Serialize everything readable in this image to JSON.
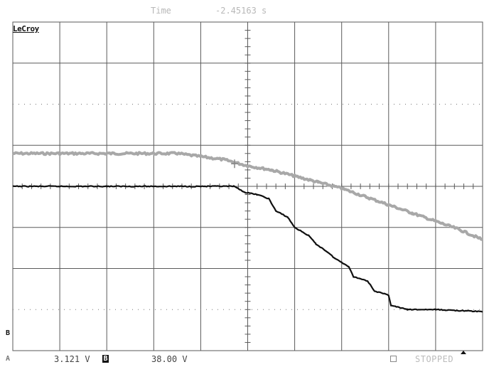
{
  "header": {
    "time_label": "Time",
    "time_value": "-2.45163 s"
  },
  "brand": "LeCroy",
  "footer": {
    "channel_a_marker": "A",
    "channel_a_value": "3.121 V",
    "channel_b_marker": "B",
    "channel_b_value": "38.00 V",
    "acquisition_state": "STOPPED"
  },
  "channel_marker_b": "B",
  "colors": {
    "grid": "#5a5a5a",
    "trace_a": "#a8a8a8",
    "trace_b": "#101010"
  },
  "chart_data": {
    "type": "line",
    "title": "",
    "grid": true,
    "divisions": {
      "x": 10,
      "y": 8
    },
    "xlim": [
      0,
      10
    ],
    "ylim": [
      -4,
      4
    ],
    "x_units": "div",
    "y_units": "div",
    "series": [
      {
        "color": "#a8a8a8",
        "x": [
          0,
          2,
          3.5,
          4.5,
          5.0,
          5.5,
          6.0,
          6.5,
          7.0,
          7.5,
          8.0,
          8.5,
          9.0,
          9.5,
          10.0
        ],
        "y": [
          0.8,
          0.8,
          0.8,
          0.65,
          0.5,
          0.4,
          0.25,
          0.1,
          -0.05,
          -0.25,
          -0.45,
          -0.65,
          -0.85,
          -1.05,
          -1.3
        ]
      },
      {
        "color": "#101010",
        "x": [
          0,
          2,
          4.7,
          4.95,
          5.2,
          5.45,
          5.6,
          5.85,
          6.0,
          6.3,
          6.45,
          6.7,
          6.85,
          7.15,
          7.25,
          7.55,
          7.7,
          8.0,
          8.05,
          8.4,
          9.0,
          10.0
        ],
        "y": [
          0.0,
          0.0,
          0.0,
          -0.15,
          -0.2,
          -0.3,
          -0.6,
          -0.75,
          -1.0,
          -1.2,
          -1.4,
          -1.6,
          -1.75,
          -1.95,
          -2.2,
          -2.3,
          -2.55,
          -2.65,
          -2.9,
          -3.0,
          -3.0,
          -3.05
        ]
      }
    ]
  }
}
